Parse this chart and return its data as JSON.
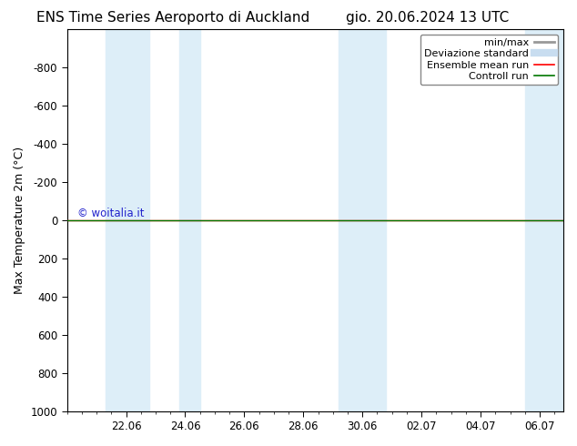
{
  "title": "ENS Time Series Aeroporto di Auckland",
  "title_right": "gio. 20.06.2024 13 UTC",
  "ylabel": "Max Temperature 2m (°C)",
  "ylim_bottom": 1000,
  "ylim_top": -1000,
  "yticks": [
    -800,
    -600,
    -400,
    -200,
    0,
    200,
    400,
    600,
    800,
    1000
  ],
  "xtick_labels": [
    "22.06",
    "24.06",
    "26.06",
    "28.06",
    "30.06",
    "02.07",
    "04.07",
    "06.07"
  ],
  "xtick_positions": [
    2,
    4,
    6,
    8,
    10,
    12,
    14,
    16
  ],
  "xlim_left": 0.0,
  "xlim_right": 16.8,
  "watermark": "© woitalia.it",
  "watermark_color": "#2222cc",
  "bg_color": "#ffffff",
  "plot_bg_color": "#ffffff",
  "shaded_bands": [
    [
      1.3,
      2.8
    ],
    [
      3.8,
      4.5
    ],
    [
      9.2,
      10.8
    ],
    [
      15.5,
      16.8
    ]
  ],
  "shaded_color": "#ddeef8",
  "flat_line_y": 0,
  "ensemble_mean_color": "#ff0000",
  "control_run_color": "#007700",
  "legend_labels": [
    "min/max",
    "Deviazione standard",
    "Ensemble mean run",
    "Controll run"
  ],
  "legend_colors": [
    "#999999",
    "#c8ddf0",
    "#ff0000",
    "#007700"
  ],
  "legend_lws": [
    2.0,
    6.0,
    1.2,
    1.2
  ],
  "font_family": "DejaVu Sans",
  "title_fontsize": 11,
  "axis_label_fontsize": 9,
  "tick_fontsize": 8.5,
  "legend_fontsize": 8,
  "watermark_fontsize": 8.5
}
